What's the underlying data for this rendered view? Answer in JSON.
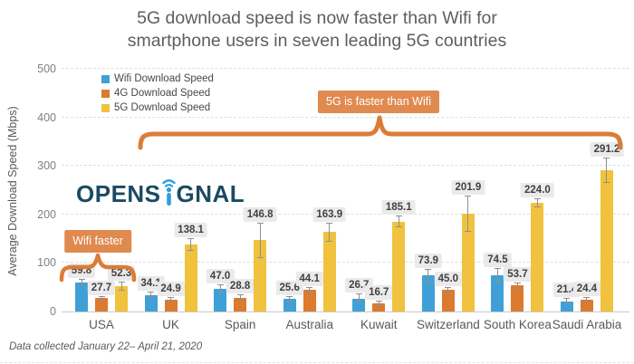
{
  "title": {
    "line1": "5G download speed is now faster than Wifi for",
    "line2": "smartphone users in seven leading 5G countries"
  },
  "logo": {
    "prefix": "OPENS",
    "suffix": "GNAL",
    "name": "Opensignal"
  },
  "badges": {
    "wifi_faster": "Wifi faster",
    "fiveg_faster": "5G is faster than Wifi"
  },
  "footer": {
    "text": "Data collected January 22– April 21, 2020"
  },
  "colors": {
    "wifi": "#3FA0D8",
    "fourg": "#DC7A2E",
    "fiveg": "#F0C23D",
    "bracket": "#DB7C36",
    "badge_bg": "#E08A50",
    "logo_navy": "#1B4A62",
    "logo_blue": "#2D9FD8",
    "value_chip_bg": "#EAEAEA",
    "title_text": "#5E5E5E"
  },
  "chart_data": {
    "type": "bar",
    "title": "5G download speed is now faster than Wifi for smartphone users in seven leading 5G countries",
    "xlabel": "",
    "ylabel": "Average Download Speed (Mbps)",
    "ylim": [
      0,
      500
    ],
    "yticks": [
      0,
      100,
      200,
      300,
      400,
      500
    ],
    "grid": "horizontal-dashed",
    "legend_position": "top-left",
    "categories": [
      "USA",
      "UK",
      "Spain",
      "Australia",
      "Kuwait",
      "Switzerland",
      "South Korea",
      "Saudi Arabia"
    ],
    "series": [
      {
        "name": "Wifi Download Speed",
        "key": "wifi",
        "values": [
          59.8,
          34.1,
          47.0,
          25.6,
          26.7,
          73.9,
          74.5,
          21.4
        ],
        "err": [
          6,
          5,
          8,
          4,
          8,
          12,
          13,
          5
        ]
      },
      {
        "name": "4G Download Speed",
        "key": "fourg",
        "values": [
          27.7,
          24.9,
          28.8,
          44.1,
          16.7,
          45.0,
          53.7,
          24.4
        ],
        "err": [
          3,
          3,
          4,
          5,
          3,
          4,
          5,
          4
        ]
      },
      {
        "name": "5G Download Speed",
        "key": "fiveg",
        "values": [
          52.3,
          138.1,
          146.8,
          163.9,
          185.1,
          201.9,
          224.0,
          291.2
        ],
        "err": [
          8,
          12,
          35,
          18,
          10,
          35,
          8,
          25
        ]
      }
    ],
    "annotations": [
      {
        "text": "Wifi faster",
        "covers": [
          "USA"
        ]
      },
      {
        "text": "5G is faster than Wifi",
        "covers": [
          "UK",
          "Spain",
          "Australia",
          "Kuwait",
          "Switzerland",
          "South Korea",
          "Saudi Arabia"
        ]
      }
    ]
  }
}
